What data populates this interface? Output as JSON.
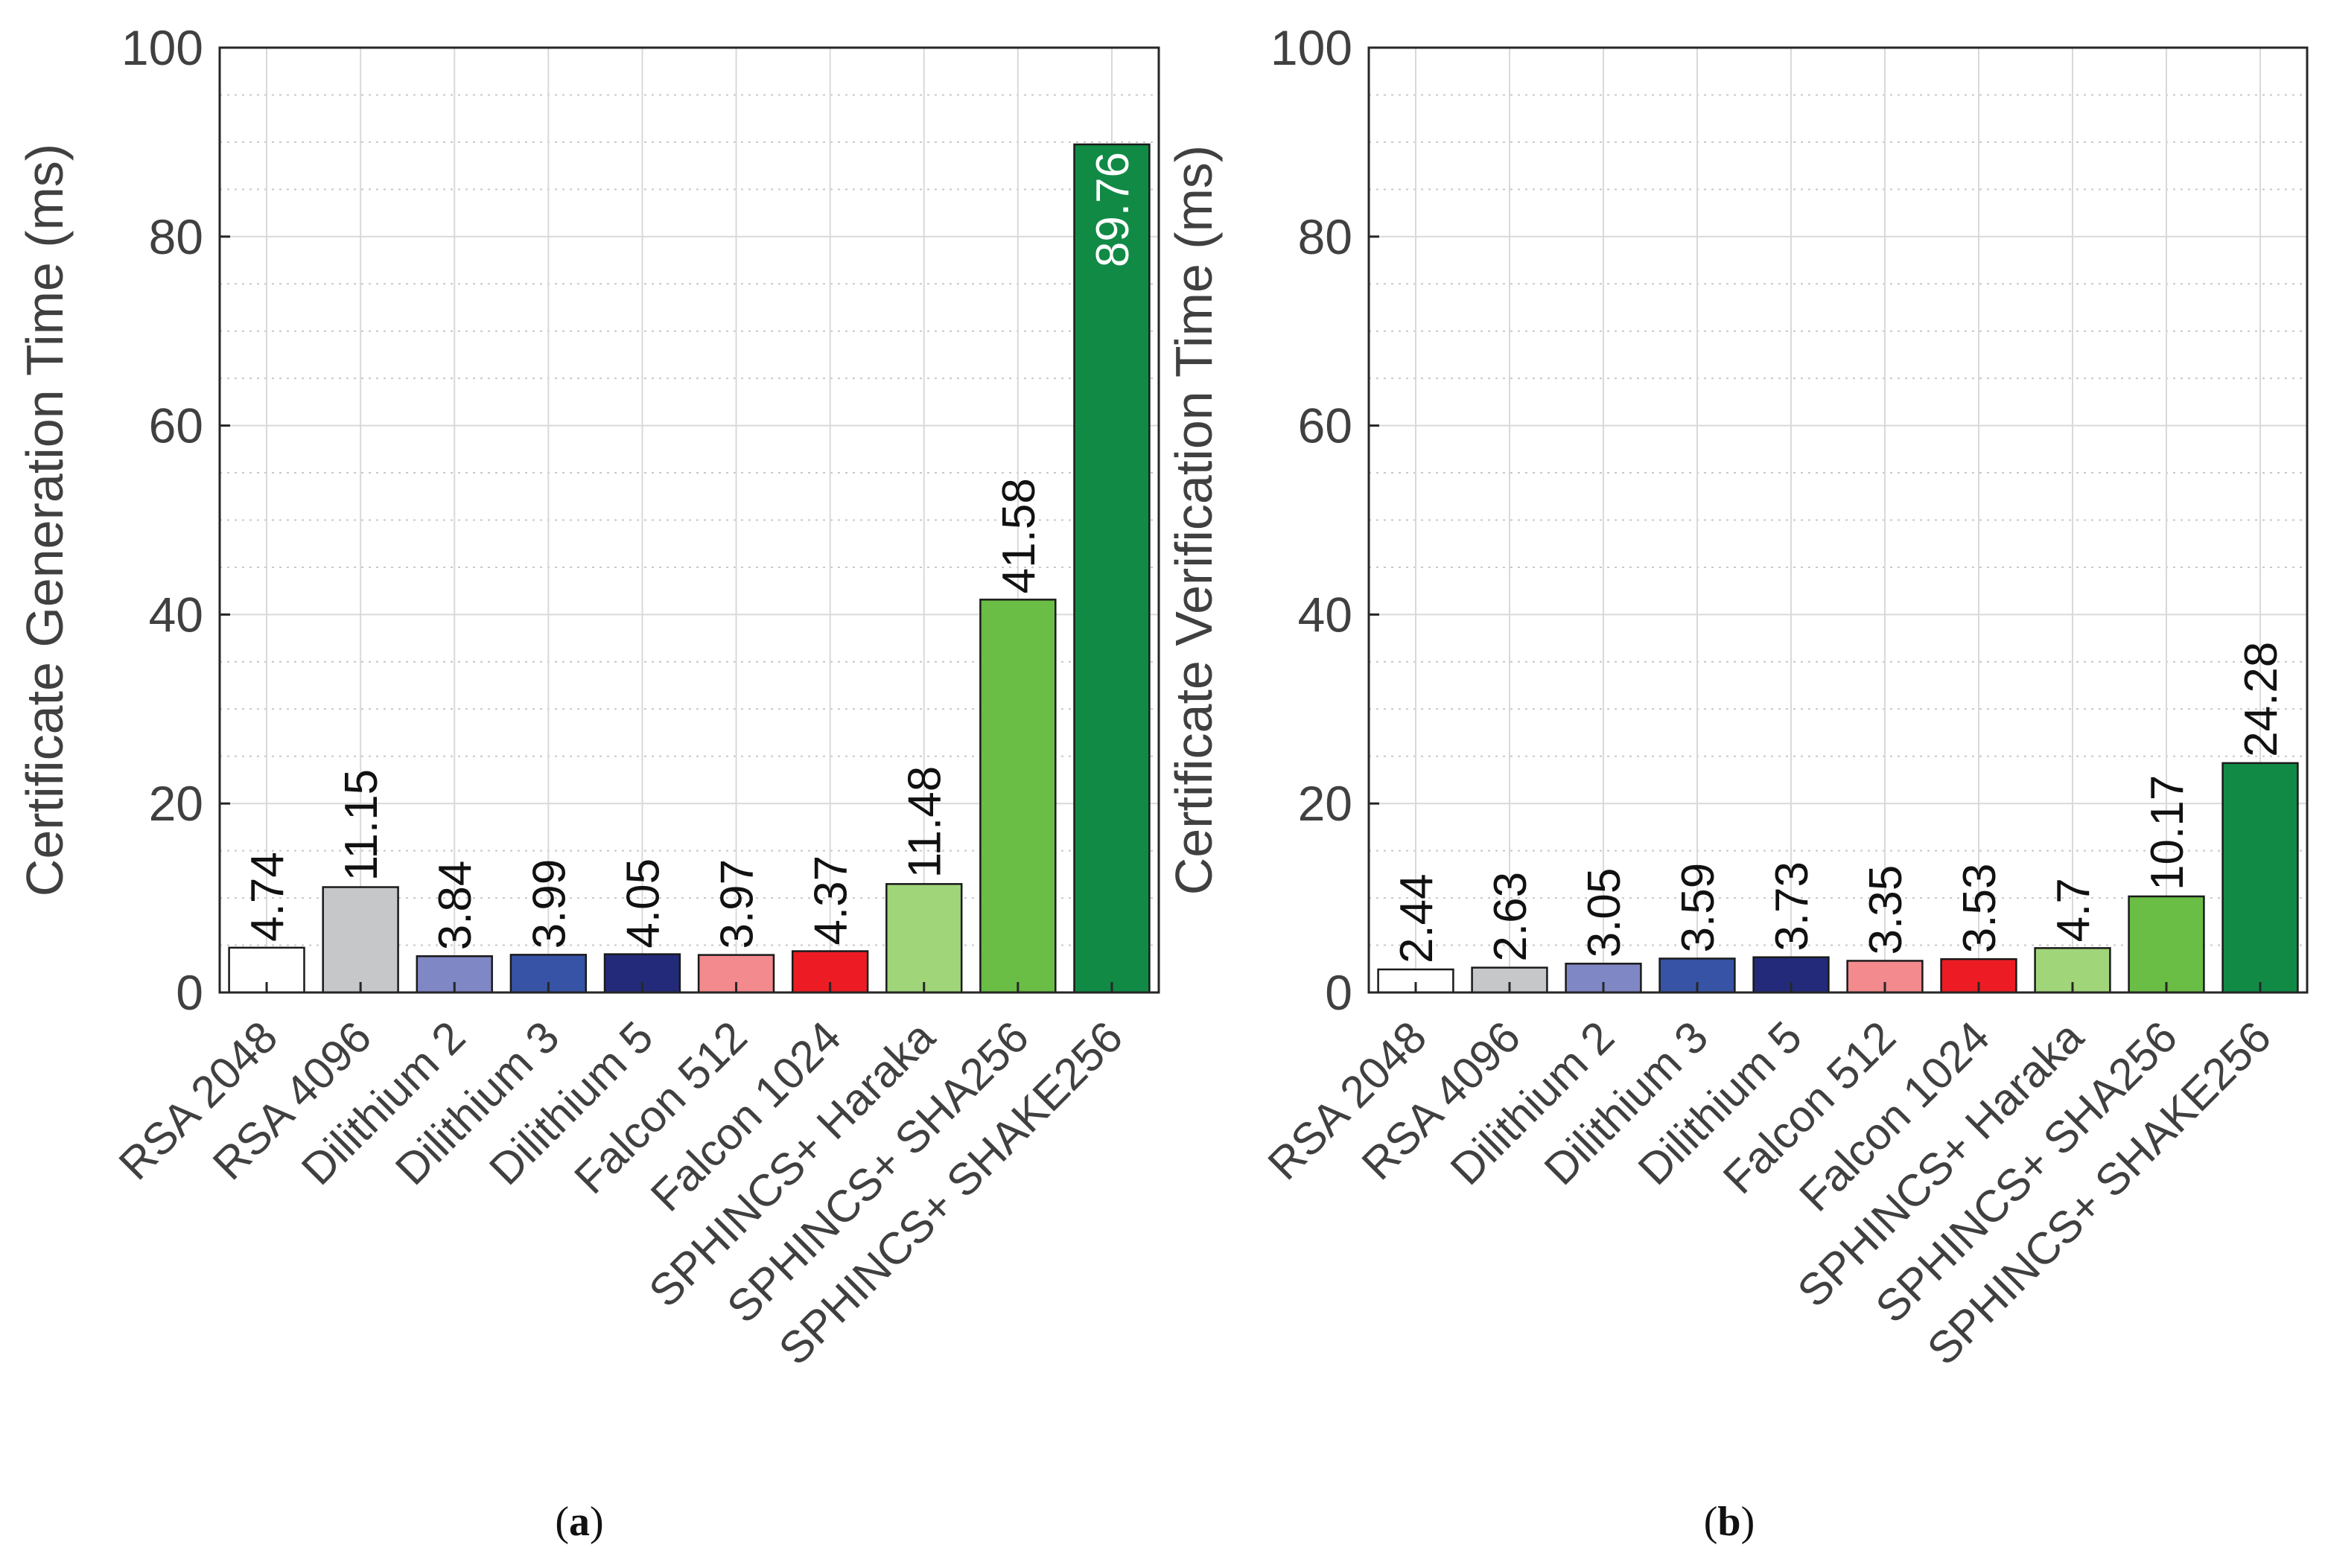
{
  "chart_data": [
    {
      "type": "bar",
      "ylabel": "Certificate Generation Time (ms)",
      "caption_letter": "a",
      "ylim": [
        0,
        100
      ],
      "yticks": [
        "0",
        "20",
        "40",
        "60",
        "80",
        "100"
      ],
      "grid": true,
      "minor_grid": true,
      "categories": [
        "RSA 2048",
        "RSA 4096",
        "Dilithium 2",
        "Dilithium 3",
        "Dilithium 5",
        "Falcon 512",
        "Falcon 1024",
        "SPHINCS+ Haraka",
        "SPHINCS+ SHA256",
        "SPHINCS+ SHAKE256"
      ],
      "values": [
        4.74,
        11.15,
        3.84,
        3.99,
        4.05,
        3.97,
        4.37,
        11.48,
        41.58,
        89.76
      ],
      "value_labels": [
        "4.74",
        "11.15",
        "3.84",
        "3.99",
        "4.05",
        "3.97",
        "4.37",
        "11.48",
        "41.58",
        "89.76"
      ],
      "colors": [
        "#ffffff",
        "#c6c7c9",
        "#8087c5",
        "#3753a5",
        "#242a7a",
        "#f28a8e",
        "#ed1c24",
        "#a1d57a",
        "#6abd45",
        "#118a45"
      ]
    },
    {
      "type": "bar",
      "ylabel": "Certificate Verification Time (ms)",
      "caption_letter": "b",
      "ylim": [
        0,
        100
      ],
      "yticks": [
        "0",
        "20",
        "40",
        "60",
        "80",
        "100"
      ],
      "grid": true,
      "minor_grid": true,
      "categories": [
        "RSA 2048",
        "RSA 4096",
        "Dilithium 2",
        "Dilithium 3",
        "Dilithium 5",
        "Falcon 512",
        "Falcon 1024",
        "SPHINCS+ Haraka",
        "SPHINCS+ SHA256",
        "SPHINCS+ SHAKE256"
      ],
      "values": [
        2.44,
        2.63,
        3.05,
        3.59,
        3.73,
        3.35,
        3.53,
        4.7,
        10.17,
        24.28
      ],
      "value_labels": [
        "2.44",
        "2.63",
        "3.05",
        "3.59",
        "3.73",
        "3.35",
        "3.53",
        "4.7",
        "10.17",
        "24.28"
      ],
      "colors": [
        "#ffffff",
        "#c6c7c9",
        "#8087c5",
        "#3753a5",
        "#242a7a",
        "#f28a8e",
        "#ed1c24",
        "#a1d57a",
        "#6abd45",
        "#118a45"
      ]
    }
  ]
}
